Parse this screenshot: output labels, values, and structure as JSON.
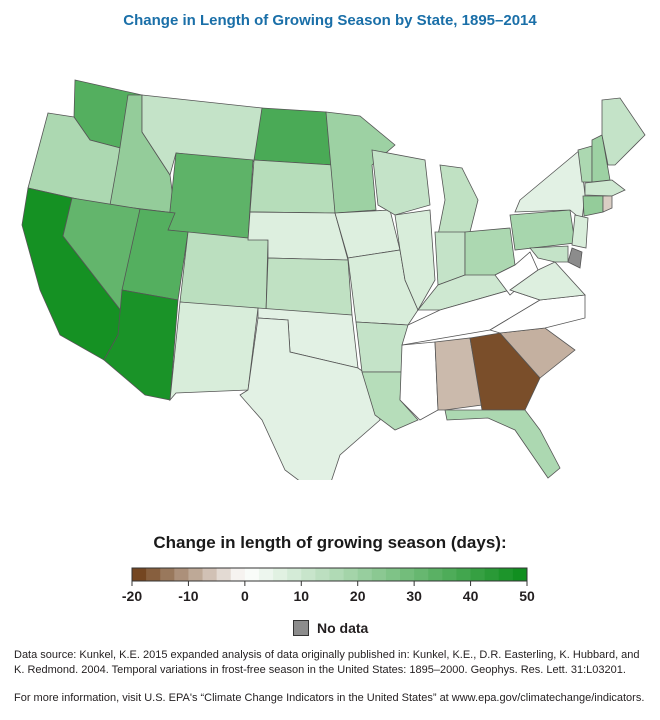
{
  "title": "Change in Length of Growing Season by State, 1895–2014",
  "legend": {
    "title": "Change in length of growing season (days):",
    "ticks": [
      "-20",
      "-10",
      "0",
      "10",
      "20",
      "30",
      "40",
      "50"
    ],
    "tick_values": [
      -20,
      -10,
      0,
      10,
      20,
      30,
      40,
      50
    ],
    "range": [
      -20,
      50
    ],
    "bin_size": 2.5,
    "no_data_label": "No data",
    "no_data_color": "#8c8c8c"
  },
  "colors": {
    "neg_max": "#6b3a12",
    "zero": "#ffffff",
    "pos_max": "#0b8c1a"
  },
  "source_text": "Data source: Kunkel, K.E. 2015 expanded analysis of data originally published in: Kunkel, K.E., D.R. Easterling, K. Hubbard, and K. Redmond. 2004. Temporal variations in frost-free season in the United States: 1895–2000. Geophys. Res. Lett. 31:L03201.",
  "more_info_text": "For more information, visit U.S. EPA's “Climate Change Indicators in the United States” at www.epa.gov/climatechange/indicators.",
  "states": [
    {
      "id": "WA",
      "value": 35
    },
    {
      "id": "OR",
      "value": 17
    },
    {
      "id": "CA",
      "value": 48
    },
    {
      "id": "ID",
      "value": 22
    },
    {
      "id": "NV",
      "value": 32
    },
    {
      "id": "MT",
      "value": 12
    },
    {
      "id": "WY",
      "value": 33
    },
    {
      "id": "UT",
      "value": 35
    },
    {
      "id": "AZ",
      "value": 47
    },
    {
      "id": "CO",
      "value": 14
    },
    {
      "id": "NM",
      "value": 8
    },
    {
      "id": "ND",
      "value": 37
    },
    {
      "id": "SD",
      "value": 15
    },
    {
      "id": "NE",
      "value": 7
    },
    {
      "id": "KS",
      "value": 13
    },
    {
      "id": "OK",
      "value": 6
    },
    {
      "id": "TX",
      "value": 6
    },
    {
      "id": "MN",
      "value": 20
    },
    {
      "id": "IA",
      "value": 7
    },
    {
      "id": "MO",
      "value": 8
    },
    {
      "id": "AR",
      "value": 12
    },
    {
      "id": "LA",
      "value": 15
    },
    {
      "id": "WI",
      "value": 12
    },
    {
      "id": "IL",
      "value": 8
    },
    {
      "id": "MS",
      "value": 0
    },
    {
      "id": "MI",
      "value": 13
    },
    {
      "id": "IN",
      "value": 12
    },
    {
      "id": "KY",
      "value": 10
    },
    {
      "id": "TN",
      "value": 0
    },
    {
      "id": "AL",
      "value": -7
    },
    {
      "id": "GA",
      "value": -18
    },
    {
      "id": "FL",
      "value": 17
    },
    {
      "id": "SC",
      "value": -8
    },
    {
      "id": "NC",
      "value": 0
    },
    {
      "id": "OH",
      "value": 17
    },
    {
      "id": "WV",
      "value": 0
    },
    {
      "id": "VA",
      "value": 7
    },
    {
      "id": "PA",
      "value": 18
    },
    {
      "id": "NY",
      "value": 6
    },
    {
      "id": "VT",
      "value": 17
    },
    {
      "id": "NH",
      "value": 20
    },
    {
      "id": "ME",
      "value": 12
    },
    {
      "id": "MA",
      "value": 10
    },
    {
      "id": "CT",
      "value": 22
    },
    {
      "id": "RI",
      "value": -5
    },
    {
      "id": "NJ",
      "value": 8
    },
    {
      "id": "DE",
      "value": null
    },
    {
      "id": "MD",
      "value": 12
    }
  ]
}
